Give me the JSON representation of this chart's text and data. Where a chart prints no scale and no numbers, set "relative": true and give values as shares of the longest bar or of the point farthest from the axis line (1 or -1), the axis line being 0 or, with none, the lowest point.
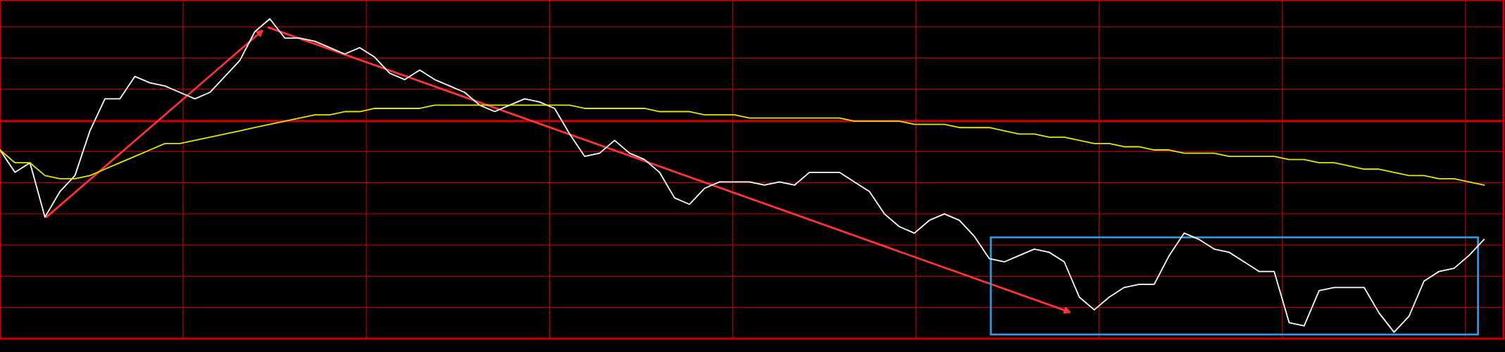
{
  "chart_data": {
    "type": "line",
    "relative": true,
    "grid": true,
    "marker": "none",
    "line_style": "solid",
    "categories": [
      null,
      null,
      null,
      null,
      null,
      null,
      null,
      null,
      null,
      null,
      null,
      null,
      null,
      null,
      null,
      null,
      null,
      null,
      null,
      null,
      null,
      null,
      null,
      null,
      null,
      null,
      null,
      null,
      null,
      null,
      null,
      null,
      null,
      null,
      null,
      null,
      null,
      null,
      null,
      null,
      null,
      null,
      null,
      null,
      null,
      null,
      null,
      null,
      null,
      null,
      null,
      null,
      null,
      null,
      null,
      null,
      null,
      null,
      null,
      null,
      null,
      null,
      null,
      null,
      null,
      null,
      null,
      null,
      null,
      null,
      null,
      null,
      null,
      null,
      null,
      null,
      null,
      null,
      null,
      null,
      null,
      null,
      null,
      null,
      null,
      null,
      null,
      null,
      null,
      null,
      null,
      null,
      null,
      null,
      null,
      null,
      null,
      null,
      null,
      null
    ],
    "series": [
      {
        "color": "#ffffff",
        "values": [
          0.59,
          0.52,
          0.55,
          0.38,
          0.46,
          0.51,
          0.65,
          0.75,
          0.75,
          0.82,
          0.8,
          0.79,
          0.77,
          0.75,
          0.77,
          0.82,
          0.87,
          0.96,
          1,
          0.94,
          0.94,
          0.93,
          0.91,
          0.89,
          0.91,
          0.88,
          0.83,
          0.81,
          0.84,
          0.81,
          0.79,
          0.77,
          0.73,
          0.71,
          0.73,
          0.75,
          0.74,
          0.72,
          0.64,
          0.57,
          0.58,
          0.62,
          0.58,
          0.56,
          0.52,
          0.44,
          0.42,
          0.47,
          0.49,
          0.49,
          0.49,
          0.48,
          0.49,
          0.48,
          0.52,
          0.52,
          0.52,
          0.49,
          0.46,
          0.39,
          0.35,
          0.33,
          0.37,
          0.39,
          0.37,
          0.32,
          0.25,
          0.24,
          0.26,
          0.28,
          0.27,
          0.24,
          0.13,
          0.09,
          0.13,
          0.16,
          0.17,
          0.17,
          0.26,
          0.33,
          0.31,
          0.28,
          0.27,
          0.24,
          0.21,
          0.21,
          0.05,
          0.04,
          0.15,
          0.16,
          0.16,
          0.16,
          0.08,
          0.02,
          0.07,
          0.18,
          0.21,
          0.22,
          0.26,
          0.31
        ]
      },
      {
        "color": "#e6e600",
        "values": [
          0.59,
          0.55,
          0.55,
          0.51,
          0.5,
          0.5,
          0.51,
          0.53,
          0.55,
          0.57,
          0.59,
          0.61,
          0.61,
          0.62,
          0.63,
          0.64,
          0.65,
          0.66,
          0.67,
          0.68,
          0.69,
          0.7,
          0.7,
          0.71,
          0.71,
          0.72,
          0.72,
          0.72,
          0.72,
          0.73,
          0.73,
          0.73,
          0.73,
          0.73,
          0.73,
          0.73,
          0.73,
          0.73,
          0.73,
          0.72,
          0.72,
          0.72,
          0.72,
          0.72,
          0.71,
          0.71,
          0.71,
          0.7,
          0.7,
          0.7,
          0.69,
          0.69,
          0.69,
          0.69,
          0.69,
          0.69,
          0.69,
          0.68,
          0.68,
          0.68,
          0.68,
          0.67,
          0.67,
          0.67,
          0.66,
          0.66,
          0.66,
          0.65,
          0.64,
          0.64,
          0.63,
          0.63,
          0.62,
          0.61,
          0.61,
          0.6,
          0.6,
          0.59,
          0.59,
          0.58,
          0.58,
          0.58,
          0.57,
          0.57,
          0.57,
          0.57,
          0.56,
          0.56,
          0.55,
          0.55,
          0.54,
          0.53,
          0.53,
          0.52,
          0.51,
          0.51,
          0.5,
          0.5,
          0.49,
          0.48
        ]
      }
    ],
    "ref_lines": [
      {
        "axis": "y",
        "value": 0.68,
        "color": "#cc0000"
      }
    ]
  }
}
